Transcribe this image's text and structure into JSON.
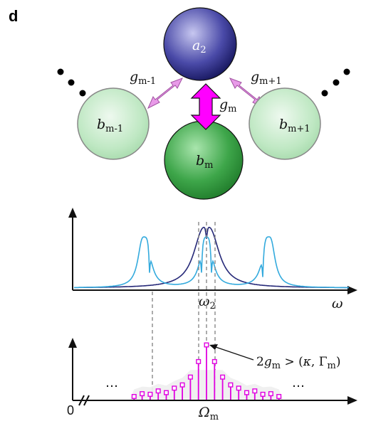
{
  "panel": {
    "label": "d"
  },
  "nodes": {
    "center_top": {
      "name": "a",
      "sub": "2"
    },
    "left": {
      "name": "b",
      "sub": "m-1"
    },
    "center": {
      "name": "b",
      "sub": "m"
    },
    "right": {
      "name": "b",
      "sub": "m+1"
    }
  },
  "couplings": {
    "left": {
      "name": "g",
      "sub": "m-1"
    },
    "center": {
      "name": "g",
      "sub": "m"
    },
    "right": {
      "name": "g",
      "sub": "m+1"
    }
  },
  "colors": {
    "a2_top": "#8c8cd9",
    "a2_bottom": "#1c1c6e",
    "bm_main": "#2a9a3a",
    "bm_side": "#b8e6bc",
    "arrow_magenta": "#ff00ff",
    "arrow_pink": "#e89ae8",
    "spectrum_light": "#33aadd",
    "spectrum_dark": "#252878",
    "comb": "#e000e0",
    "guide": "#888888"
  },
  "spectrum_panel": {
    "x_label": {
      "name": "ω",
      "sub": "2"
    },
    "axis_label": "ω"
  },
  "comb_panel": {
    "origin": "0",
    "x_label": {
      "name": "Ω",
      "sub": "m"
    },
    "ellipsis_left": "…",
    "ellipsis_right": "…",
    "annotation": {
      "prefix": "2",
      "g": "g",
      "g_sub": "m",
      "rel": " > (",
      "kappa": "κ",
      "comma": ", ",
      "gamma": "Γ",
      "gamma_sub": "m",
      "close": ")"
    },
    "peak_heights": [
      0.07,
      0.12,
      0.11,
      0.17,
      0.14,
      0.22,
      0.28,
      0.42,
      0.7,
      1.0,
      0.7,
      0.42,
      0.28,
      0.22,
      0.14,
      0.17,
      0.11,
      0.12,
      0.07
    ]
  }
}
